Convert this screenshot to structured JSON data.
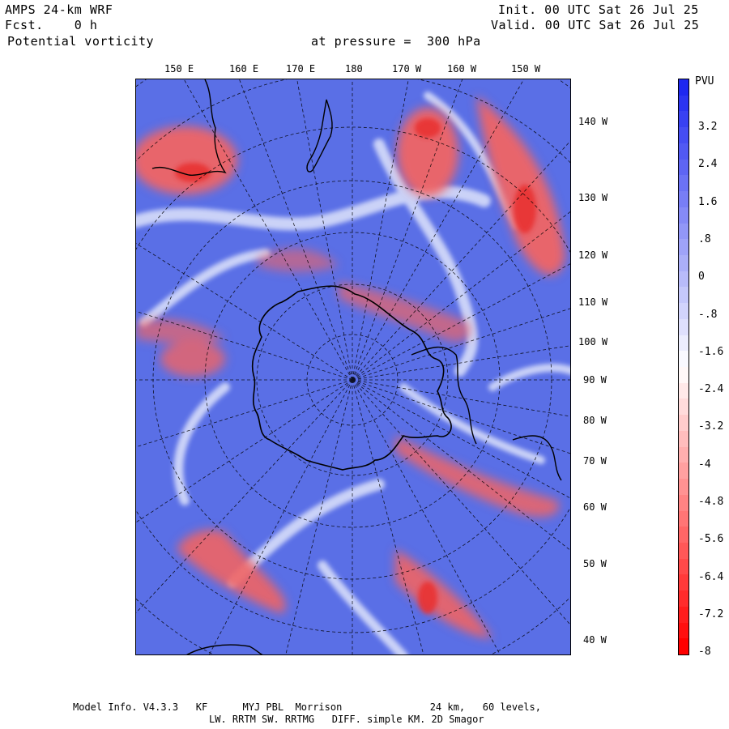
{
  "header": {
    "model": "AMPS 24-km WRF",
    "forecast": "Fcst.    0 h",
    "field": "Potential vorticity",
    "level_text": "at pressure =  300 hPa",
    "init": "Init. 00 UTC Sat 26 Jul 25",
    "valid": "Valid. 00 UTC Sat 26 Jul 25"
  },
  "map": {
    "top_labels": [
      "150 E",
      "160 E",
      "170 E",
      "180",
      "170 W",
      "160 W",
      "150 W"
    ],
    "right_labels": [
      "140 W",
      "130 W",
      "120 W",
      "110 W",
      "100 W",
      "90 W",
      "80 W",
      "70 W",
      "60 W",
      "50 W",
      "40 W"
    ],
    "colors": {
      "positive": "#5a6fe6",
      "negative": "#f06464",
      "light": "#dfe4fb",
      "coast": "#000000"
    }
  },
  "colorbar": {
    "unit": "PVU",
    "tick_labels": [
      "3.2",
      "2.4",
      "1.6",
      ".8",
      "0",
      "-.8",
      "-1.6",
      "-2.4",
      "-3.2",
      "-4",
      "-4.8",
      "-5.6",
      "-6.4",
      "-7.2",
      "-8"
    ]
  },
  "footer": {
    "line1": "Model Info. V4.3.3   KF      MYJ PBL  Morrison               24 km,   60 levels,",
    "line2": "LW. RRTM SW. RRTMG   DIFF. simple KM. 2D Smagor"
  }
}
